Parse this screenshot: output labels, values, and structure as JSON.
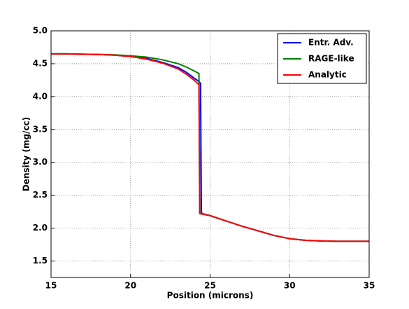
{
  "chart_data": {
    "type": "line",
    "x_label": "Position (microns)",
    "y_label": "Density (mg/cc)",
    "xlim": [
      15,
      35
    ],
    "ylim": [
      1.25,
      5.0
    ],
    "xticks": [
      15,
      20,
      25,
      30,
      35
    ],
    "yticks": [
      1.5,
      {
        "value": 2,
        "label": "2.0"
      },
      2.5,
      {
        "value": 3,
        "label": "3.0"
      },
      3.5,
      {
        "value": 4,
        "label": "4.0"
      },
      4.5,
      {
        "value": 5,
        "label": "5.0"
      }
    ],
    "grid": true,
    "legend": "upper right",
    "series": [
      {
        "name": "Entr. Adv.",
        "color": "#0000ff",
        "x": [
          15,
          16,
          17,
          18,
          19,
          20,
          21,
          22,
          23,
          23.5,
          24,
          24.3,
          24.4,
          24.45,
          24.5,
          25,
          26,
          27,
          28,
          29,
          30,
          31,
          32,
          33,
          35
        ],
        "values": [
          4.65,
          4.65,
          4.645,
          4.64,
          4.63,
          4.61,
          4.58,
          4.52,
          4.44,
          4.37,
          4.28,
          4.23,
          4.2,
          2.25,
          2.22,
          2.19,
          2.11,
          2.03,
          1.96,
          1.89,
          1.84,
          1.815,
          1.805,
          1.8,
          1.8
        ]
      },
      {
        "name": "RAGE-like",
        "color": "#008000",
        "x": [
          15,
          16,
          17,
          18,
          19,
          20,
          21,
          22,
          23,
          23.5,
          24,
          24.3,
          24.35,
          24.5,
          25,
          26,
          27,
          28,
          29,
          30,
          31,
          32,
          33,
          35
        ],
        "values": [
          4.65,
          4.65,
          4.645,
          4.64,
          4.635,
          4.62,
          4.6,
          4.56,
          4.5,
          4.45,
          4.39,
          4.35,
          2.23,
          2.22,
          2.19,
          2.11,
          2.03,
          1.96,
          1.89,
          1.84,
          1.815,
          1.805,
          1.8,
          1.8
        ]
      },
      {
        "name": "Analytic",
        "color": "#ff0000",
        "x": [
          15,
          16,
          17,
          18,
          19,
          20,
          21,
          22,
          23,
          23.5,
          24,
          24.3,
          24.35,
          25,
          26,
          27,
          28,
          29,
          30,
          31,
          32,
          33,
          35
        ],
        "values": [
          4.65,
          4.65,
          4.645,
          4.64,
          4.63,
          4.61,
          4.57,
          4.51,
          4.42,
          4.34,
          4.25,
          4.18,
          2.22,
          2.19,
          2.11,
          2.03,
          1.96,
          1.89,
          1.84,
          1.815,
          1.805,
          1.8,
          1.8
        ]
      }
    ]
  }
}
